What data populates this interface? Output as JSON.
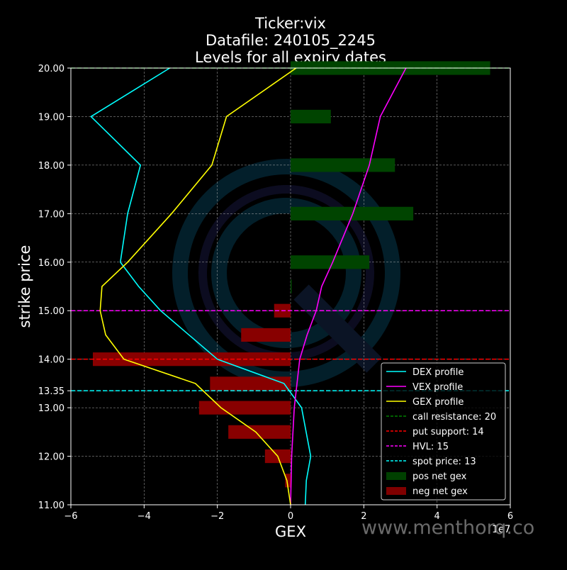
{
  "chart_data": {
    "type": "line",
    "title_lines": [
      "Ticker:vix",
      "Datafile: 240105_2245",
      "Levels for all expiry dates"
    ],
    "xlabel": "GEX",
    "ylabel": "strike price",
    "x_multiplier_label": "1e7",
    "xlim": [
      -60000000,
      60000000
    ],
    "ylim": [
      11,
      20
    ],
    "x_ticks": [
      {
        "value": -60000000,
        "label": "−6"
      },
      {
        "value": -40000000,
        "label": "−4"
      },
      {
        "value": -20000000,
        "label": "−2"
      },
      {
        "value": 0,
        "label": "0"
      },
      {
        "value": 20000000,
        "label": "2"
      },
      {
        "value": 40000000,
        "label": "4"
      },
      {
        "value": 60000000,
        "label": "6"
      }
    ],
    "y_ticks": [
      {
        "value": 11,
        "label": "11.00"
      },
      {
        "value": 12,
        "label": "12.00"
      },
      {
        "value": 13,
        "label": "13.00"
      },
      {
        "value": 13.35,
        "label": "13.35"
      },
      {
        "value": 14,
        "label": "14.00"
      },
      {
        "value": 15,
        "label": "15.00"
      },
      {
        "value": 16,
        "label": "16.00"
      },
      {
        "value": 17,
        "label": "17.00"
      },
      {
        "value": 18,
        "label": "18.00"
      },
      {
        "value": 19,
        "label": "19.00"
      },
      {
        "value": 20,
        "label": "20.00"
      }
    ],
    "grid": true,
    "legend_position": "bottom-right",
    "bars": [
      {
        "strike": 11.5,
        "value": -1500000
      },
      {
        "strike": 12,
        "value": -7000000
      },
      {
        "strike": 12.5,
        "value": -17000000
      },
      {
        "strike": 13,
        "value": -25000000
      },
      {
        "strike": 13.5,
        "value": -22000000
      },
      {
        "strike": 14,
        "value": -54000000
      },
      {
        "strike": 14.5,
        "value": -13500000
      },
      {
        "strike": 15,
        "value": -4500000
      },
      {
        "strike": 15.5,
        "value": 300000
      },
      {
        "strike": 16,
        "value": 21500000
      },
      {
        "strike": 17,
        "value": 33500000
      },
      {
        "strike": 18,
        "value": 28500000
      },
      {
        "strike": 19,
        "value": 11000000
      },
      {
        "strike": 20,
        "value": 54500000
      }
    ],
    "series": [
      {
        "name": "DEX profile",
        "color": "#00ffff",
        "points": [
          {
            "strike": 11,
            "value": 4000000
          },
          {
            "strike": 11.5,
            "value": 4300000
          },
          {
            "strike": 12,
            "value": 5500000
          },
          {
            "strike": 13,
            "value": 3000000
          },
          {
            "strike": 13.5,
            "value": -1800000
          },
          {
            "strike": 14,
            "value": -20000000
          },
          {
            "strike": 15,
            "value": -35500000
          },
          {
            "strike": 15.5,
            "value": -41500000
          },
          {
            "strike": 16,
            "value": -46500000
          },
          {
            "strike": 17,
            "value": -44500000
          },
          {
            "strike": 18,
            "value": -41000000
          },
          {
            "strike": 19,
            "value": -54500000
          },
          {
            "strike": 20,
            "value": -33000000
          }
        ]
      },
      {
        "name": "VEX profile",
        "color": "#ff00ff",
        "points": [
          {
            "strike": 11,
            "value": 0
          },
          {
            "strike": 12,
            "value": 300000
          },
          {
            "strike": 13,
            "value": 1000000
          },
          {
            "strike": 14,
            "value": 2500000
          },
          {
            "strike": 14.5,
            "value": 4500000
          },
          {
            "strike": 15,
            "value": 7000000
          },
          {
            "strike": 15.5,
            "value": 8500000
          },
          {
            "strike": 16,
            "value": 11500000
          },
          {
            "strike": 17,
            "value": 17000000
          },
          {
            "strike": 18,
            "value": 21500000
          },
          {
            "strike": 19,
            "value": 24500000
          },
          {
            "strike": 20,
            "value": 31500000
          }
        ]
      },
      {
        "name": "GEX profile",
        "color": "#ffff00",
        "points": [
          {
            "strike": 11,
            "value": 0
          },
          {
            "strike": 11.5,
            "value": -1000000
          },
          {
            "strike": 12,
            "value": -3500000
          },
          {
            "strike": 12.5,
            "value": -9500000
          },
          {
            "strike": 13,
            "value": -19000000
          },
          {
            "strike": 13.5,
            "value": -26000000
          },
          {
            "strike": 14,
            "value": -45500000
          },
          {
            "strike": 14.5,
            "value": -50500000
          },
          {
            "strike": 15,
            "value": -52000000
          },
          {
            "strike": 15.5,
            "value": -51500000
          },
          {
            "strike": 16,
            "value": -44500000
          },
          {
            "strike": 17,
            "value": -32500000
          },
          {
            "strike": 18,
            "value": -21500000
          },
          {
            "strike": 19,
            "value": -17500000
          },
          {
            "strike": 20,
            "value": 1500000
          }
        ]
      }
    ],
    "levels": [
      {
        "name": "call resistance",
        "value": 20,
        "label": "call resistance: 20",
        "color": "#008000"
      },
      {
        "name": "put support",
        "value": 14,
        "label": "put support: 14",
        "color": "#ff0000"
      },
      {
        "name": "HVL",
        "value": 15,
        "label": "HVL: 15",
        "color": "#ff00ff"
      },
      {
        "name": "spot price",
        "value": 13.35,
        "label": "spot price: 13",
        "color": "#00ffff"
      }
    ],
    "legend": [
      {
        "label": "DEX profile",
        "kind": "line",
        "color": "#00ffff"
      },
      {
        "label": "VEX profile",
        "kind": "line",
        "color": "#ff00ff"
      },
      {
        "label": "GEX profile",
        "kind": "line",
        "color": "#ffff00"
      },
      {
        "label": "call resistance: 20",
        "kind": "dashed",
        "color": "#008000"
      },
      {
        "label": "put support: 14",
        "kind": "dashed",
        "color": "#ff0000"
      },
      {
        "label": "HVL: 15",
        "kind": "dashed",
        "color": "#ff00ff"
      },
      {
        "label": "spot price: 13",
        "kind": "dashed",
        "color": "#00ffff"
      },
      {
        "label": "pos net gex",
        "kind": "patch",
        "color": "#004000"
      },
      {
        "label": "neg net gex",
        "kind": "patch",
        "color": "#800000"
      }
    ],
    "colors": {
      "pos_bar": "#004400",
      "neg_bar": "#880000"
    }
  },
  "watermark": {
    "text": "www.menthorq.co"
  }
}
